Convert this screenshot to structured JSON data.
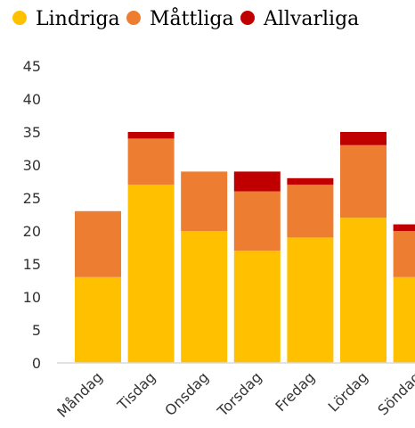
{
  "chart_data": {
    "type": "bar",
    "stacked": true,
    "categories": [
      "Måndag",
      "Tisdag",
      "Onsdag",
      "Torsdag",
      "Fredag",
      "Lördag",
      "Söndag"
    ],
    "series": [
      {
        "name": "Lindriga",
        "color": "#FFC000",
        "values": [
          13,
          27,
          20,
          17,
          19,
          22,
          13
        ]
      },
      {
        "name": "Måttliga",
        "color": "#ED7D31",
        "values": [
          10,
          7,
          9,
          9,
          8,
          11,
          7
        ]
      },
      {
        "name": "Allvarliga",
        "color": "#C00000",
        "values": [
          0,
          1,
          0,
          3,
          1,
          2,
          1
        ]
      }
    ],
    "title": "",
    "xlabel": "",
    "ylabel": "",
    "ylim": [
      0,
      45
    ],
    "yticks": [
      0,
      5,
      10,
      15,
      20,
      25,
      30,
      35,
      40,
      45
    ],
    "grid": false,
    "legend": "top-left"
  }
}
